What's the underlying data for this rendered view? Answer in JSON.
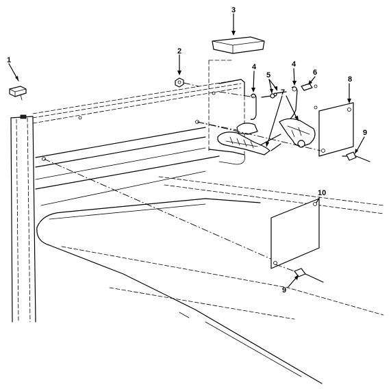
{
  "callouts": [
    {
      "id": "1",
      "label": "1"
    },
    {
      "id": "2",
      "label": "2"
    },
    {
      "id": "3",
      "label": "3"
    },
    {
      "id": "4a",
      "label": "4"
    },
    {
      "id": "4b",
      "label": "4"
    },
    {
      "id": "5",
      "label": "5"
    },
    {
      "id": "6",
      "label": "6"
    },
    {
      "id": "7",
      "label": "7"
    },
    {
      "id": "8",
      "label": "8"
    },
    {
      "id": "9a",
      "label": "9"
    },
    {
      "id": "9b",
      "label": "9"
    },
    {
      "id": "10",
      "label": "10"
    }
  ]
}
